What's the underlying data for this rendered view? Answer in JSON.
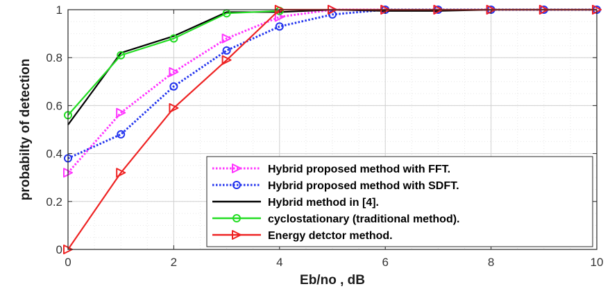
{
  "chart_data": {
    "type": "line",
    "title": "",
    "xlabel": "Eb/no , dB",
    "ylabel": "probabilty of detection",
    "xlim": [
      0,
      10
    ],
    "ylim": [
      0,
      1
    ],
    "xticks": [
      "0",
      "2",
      "4",
      "6",
      "8",
      "10"
    ],
    "yticks": [
      "0",
      "0.2",
      "0.4",
      "0.6",
      "0.8",
      "1"
    ],
    "grid": true,
    "minor_grid": true,
    "legend_position": "bottom-right",
    "series": [
      {
        "name": "Hybrid proposed method with FFT.",
        "color": "#ff33ff",
        "line_style": "dotted",
        "marker": "triangle-right",
        "x": [
          0,
          1,
          2,
          3,
          4,
          5,
          6,
          7,
          8,
          9,
          10
        ],
        "y": [
          0.32,
          0.57,
          0.74,
          0.88,
          0.97,
          1.0,
          1.0,
          1.0,
          1.0,
          1.0,
          1.0
        ]
      },
      {
        "name": "Hybrid proposed method with SDFT.",
        "color": "#2233ee",
        "line_style": "dotted",
        "marker": "circle",
        "x": [
          0,
          1,
          2,
          3,
          4,
          5,
          6,
          7,
          8,
          9,
          10
        ],
        "y": [
          0.38,
          0.48,
          0.68,
          0.83,
          0.93,
          0.98,
          1.0,
          1.0,
          1.0,
          1.0,
          1.0
        ]
      },
      {
        "name": "Hybrid method in [4].",
        "color": "#000000",
        "line_style": "solid",
        "marker": "none",
        "x": [
          0,
          1,
          2,
          3,
          4,
          5,
          6,
          7,
          8,
          9,
          10
        ],
        "y": [
          0.52,
          0.82,
          0.89,
          0.99,
          0.99,
          1.0,
          0.995,
          0.995,
          1.0,
          1.0,
          1.0
        ]
      },
      {
        "name": "cyclostationary (traditional method).",
        "color": "#22dd22",
        "line_style": "solid",
        "marker": "circle",
        "x": [
          0,
          1,
          2,
          3,
          4
        ],
        "y": [
          0.56,
          0.81,
          0.88,
          0.985,
          0.995
        ]
      },
      {
        "name": "Energy detctor method.",
        "color": "#ee2222",
        "line_style": "solid",
        "marker": "triangle-right",
        "x": [
          0,
          1,
          2,
          3,
          4,
          5,
          6,
          7,
          8,
          9,
          10
        ],
        "y": [
          0.0,
          0.32,
          0.59,
          0.79,
          1.0,
          1.0,
          1.0,
          1.0,
          1.0,
          1.0,
          1.0
        ]
      }
    ]
  }
}
